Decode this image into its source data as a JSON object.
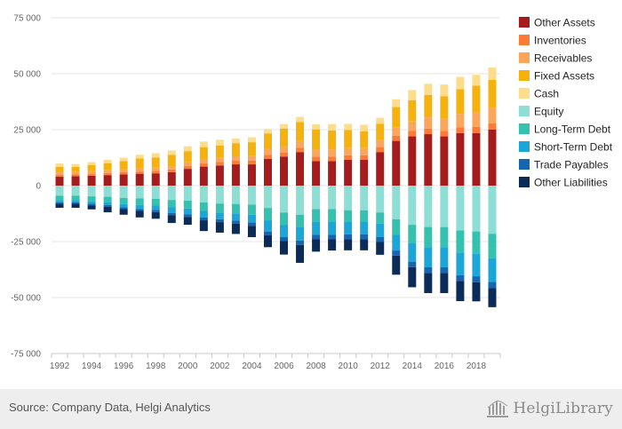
{
  "chart_data": {
    "type": "bar",
    "stacked": true,
    "categories": [
      "1992",
      "1993",
      "1994",
      "1995",
      "1996",
      "1997",
      "1998",
      "1999",
      "2000",
      "2001",
      "2002",
      "2003",
      "2004",
      "2005",
      "2006",
      "2007",
      "2008",
      "2009",
      "2010",
      "2011",
      "2012",
      "2013",
      "2014",
      "2015",
      "2016",
      "2017",
      "2018",
      "2019"
    ],
    "tick_labels": [
      "1992",
      "1994",
      "1996",
      "1998",
      "2000",
      "2002",
      "2004",
      "2006",
      "2008",
      "2010",
      "2012",
      "2014",
      "2016",
      "2018"
    ],
    "y_ticks": [
      75000,
      50000,
      25000,
      0,
      -25000,
      -50000,
      -75000
    ],
    "y_tick_labels": [
      "75 000",
      "50 000",
      "25 000",
      "0",
      "-25 000",
      "-50 000",
      "-75 000"
    ],
    "ylim": [
      -75000,
      75000
    ],
    "grid": true,
    "legend_position": "right",
    "series": [
      {
        "name": "Other Assets",
        "color": "#a61c1c",
        "values": [
          4000,
          4200,
          4400,
          4700,
          5000,
          5300,
          5500,
          6000,
          7500,
          8500,
          9000,
          9500,
          9500,
          12000,
          13000,
          15000,
          11000,
          11000,
          11500,
          11500,
          15000,
          20000,
          22000,
          23000,
          22000,
          23500,
          23500,
          25000
        ]
      },
      {
        "name": "Inventories",
        "color": "#ff7a35",
        "values": [
          900,
          900,
          900,
          950,
          1000,
          1000,
          1100,
          1200,
          1300,
          1400,
          1500,
          1600,
          1700,
          1800,
          1800,
          1900,
          2000,
          2000,
          2100,
          2100,
          2200,
          2300,
          2400,
          2500,
          2500,
          2600,
          2700,
          2800
        ]
      },
      {
        "name": "Receivables",
        "color": "#fba65b",
        "values": [
          1000,
          1100,
          1100,
          1200,
          1300,
          1300,
          1400,
          1500,
          1600,
          1800,
          1900,
          2000,
          2200,
          2500,
          2700,
          3000,
          3100,
          3200,
          3200,
          3200,
          3400,
          3800,
          4300,
          5000,
          5500,
          6000,
          6500,
          7000
        ]
      },
      {
        "name": "Fixed Assets",
        "color": "#f5b20d",
        "values": [
          2500,
          2200,
          2800,
          3200,
          3700,
          4500,
          4500,
          5000,
          5000,
          5500,
          5500,
          5900,
          6000,
          7000,
          8000,
          8500,
          9000,
          8500,
          8000,
          7500,
          7000,
          9000,
          9500,
          10000,
          10000,
          11000,
          12000,
          12500
        ]
      },
      {
        "name": "Cash",
        "color": "#fddc8c",
        "values": [
          1500,
          1200,
          1300,
          1500,
          1500,
          1700,
          2000,
          2000,
          2200,
          2500,
          2600,
          2000,
          2200,
          2000,
          2000,
          2300,
          2300,
          2800,
          2800,
          2900,
          2700,
          3500,
          4500,
          5000,
          5200,
          5500,
          4800,
          5500
        ]
      },
      {
        "name": "Equity",
        "color": "#8ddfd5",
        "values": [
          -4500,
          -4500,
          -4800,
          -5000,
          -5500,
          -5700,
          -5900,
          -6400,
          -6700,
          -7500,
          -8000,
          -8200,
          -8500,
          -10000,
          -12000,
          -13000,
          -10500,
          -10500,
          -11000,
          -11000,
          -12000,
          -15000,
          -17500,
          -18500,
          -18500,
          -20000,
          -20500,
          -21500
        ]
      },
      {
        "name": "Long-Term Debt",
        "color": "#34c1b0",
        "values": [
          -2000,
          -2000,
          -2200,
          -2400,
          -2700,
          -3000,
          -3000,
          -3300,
          -3500,
          -3800,
          -4000,
          -4200,
          -4500,
          -5500,
          -5500,
          -5500,
          -5500,
          -5500,
          -5000,
          -5000,
          -5000,
          -7000,
          -8000,
          -9000,
          -9000,
          -10000,
          -10000,
          -11000
        ]
      },
      {
        "name": "Short-Term Debt",
        "color": "#1aa7d8",
        "values": [
          -1000,
          -1000,
          -1100,
          -1300,
          -1500,
          -1800,
          -2000,
          -2500,
          -2700,
          -3000,
          -3000,
          -3200,
          -3500,
          -5000,
          -5500,
          -6000,
          -6000,
          -6000,
          -5800,
          -5800,
          -6000,
          -7000,
          -8500,
          -9000,
          -9000,
          -10000,
          -10000,
          -10500
        ]
      },
      {
        "name": "Trade Payables",
        "color": "#1565b3",
        "values": [
          -600,
          -600,
          -700,
          -700,
          -800,
          -800,
          -900,
          -1000,
          -1100,
          -1200,
          -1300,
          -1400,
          -1500,
          -1700,
          -1800,
          -2000,
          -2000,
          -2000,
          -2100,
          -2100,
          -2200,
          -2300,
          -2400,
          -2500,
          -2500,
          -2600,
          -2700,
          -2800
        ]
      },
      {
        "name": "Other Liabilities",
        "color": "#0b2b58",
        "values": [
          -1800,
          -1800,
          -1800,
          -2500,
          -2500,
          -2900,
          -3000,
          -3500,
          -3500,
          -4800,
          -4700,
          -4600,
          -5000,
          -5300,
          -6000,
          -8000,
          -5500,
          -5000,
          -5000,
          -5000,
          -5700,
          -8500,
          -9000,
          -9000,
          -9000,
          -9000,
          -8500,
          -8500
        ]
      }
    ]
  },
  "footer": {
    "source": "Source: Company Data, Helgi Analytics",
    "logo_name": "HelgiLibrary"
  }
}
